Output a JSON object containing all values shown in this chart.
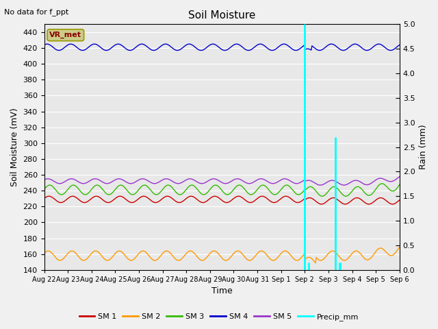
{
  "title": "Soil Moisture",
  "top_left_note": "No data for f_ppt",
  "ylabel_left": "Soil Moisture (mV)",
  "ylabel_right": "Rain (mm)",
  "xlabel": "Time",
  "ylim_left": [
    140,
    450
  ],
  "ylim_right": [
    0.0,
    5.0
  ],
  "yticks_left": [
    140,
    160,
    180,
    200,
    220,
    240,
    260,
    280,
    300,
    320,
    340,
    360,
    380,
    400,
    420,
    440
  ],
  "yticks_right": [
    0.0,
    0.5,
    1.0,
    1.5,
    2.0,
    2.5,
    3.0,
    3.5,
    4.0,
    4.5,
    5.0
  ],
  "fig_bg_color": "#f0f0f0",
  "plot_bg_color": "#e8e8e8",
  "grid_color": "#ffffff",
  "legend_box_facecolor": "#cccc88",
  "legend_box_edgecolor": "#999900",
  "legend_box_text": "VR_met",
  "legend_box_text_color": "#880000",
  "sm1_color": "#cc0000",
  "sm2_color": "#ff9900",
  "sm3_color": "#33bb00",
  "sm4_color": "#0000cc",
  "sm5_color": "#9933cc",
  "precip_color": "cyan",
  "sm1_base": 229,
  "sm1_amp": 4,
  "sm2_base": 158,
  "sm2_amp": 6,
  "sm3_base": 241,
  "sm3_amp": 6,
  "sm4_base": 421,
  "sm4_amp": 4,
  "sm5_base": 252,
  "sm5_amp": 3,
  "n_points": 500,
  "days": [
    "Aug 22",
    "Aug 23",
    "Aug 24",
    "Aug 25",
    "Aug 26",
    "Aug 27",
    "Aug 28",
    "Aug 29",
    "Aug 30",
    "Aug 31",
    "Sep 1",
    "Sep 2",
    "Sep 3",
    "Sep 4",
    "Sep 5",
    "Sep 6"
  ],
  "xlim": [
    0,
    15
  ],
  "precip_events": [
    {
      "x": 11.0,
      "value": 5.0
    },
    {
      "x": 11.15,
      "value": 0.15
    },
    {
      "x": 12.3,
      "value": 2.7
    },
    {
      "x": 12.45,
      "value": 0.15
    },
    {
      "x": 12.5,
      "value": 0.15
    }
  ]
}
